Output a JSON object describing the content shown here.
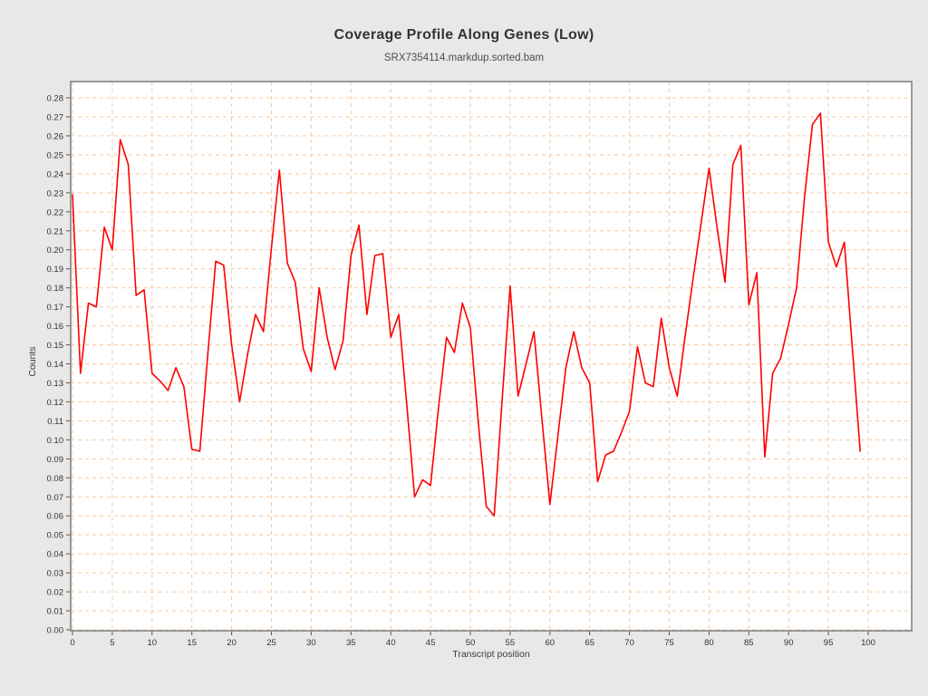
{
  "chart_data": {
    "type": "line",
    "title": "Coverage Profile Along Genes (Low)",
    "subtitle": "SRX7354114.markdup.sorted.bam",
    "xlabel": "Transcript position",
    "ylabel": "Counts",
    "xlim": [
      0,
      100
    ],
    "ylim": [
      0,
      0.28
    ],
    "grid": true,
    "legend_position": "none",
    "x_ticks": [
      0,
      5,
      10,
      15,
      20,
      25,
      30,
      35,
      40,
      45,
      50,
      55,
      60,
      65,
      70,
      75,
      80,
      85,
      90,
      95,
      100
    ],
    "y_ticks": [
      "0.00",
      "0.01",
      "0.02",
      "0.03",
      "0.04",
      "0.05",
      "0.06",
      "0.07",
      "0.08",
      "0.09",
      "0.10",
      "0.11",
      "0.12",
      "0.13",
      "0.14",
      "0.15",
      "0.16",
      "0.17",
      "0.18",
      "0.19",
      "0.20",
      "0.21",
      "0.22",
      "0.23",
      "0.24",
      "0.25",
      "0.26",
      "0.27",
      "0.28"
    ],
    "series": [
      {
        "name": "coverage",
        "x_start": 0,
        "x_step": 1,
        "values": [
          0.229,
          0.135,
          0.172,
          0.17,
          0.212,
          0.2,
          0.258,
          0.245,
          0.176,
          0.179,
          0.135,
          0.131,
          0.126,
          0.138,
          0.128,
          0.095,
          0.094,
          0.145,
          0.194,
          0.192,
          0.15,
          0.12,
          0.145,
          0.166,
          0.157,
          0.201,
          0.242,
          0.193,
          0.183,
          0.148,
          0.136,
          0.18,
          0.154,
          0.137,
          0.152,
          0.197,
          0.213,
          0.166,
          0.197,
          0.198,
          0.154,
          0.166,
          0.119,
          0.07,
          0.079,
          0.076,
          0.117,
          0.154,
          0.146,
          0.172,
          0.159,
          0.109,
          0.065,
          0.06,
          0.121,
          0.181,
          0.123,
          0.14,
          0.157,
          0.111,
          0.066,
          0.102,
          0.138,
          0.157,
          0.138,
          0.13,
          0.078,
          0.092,
          0.094,
          0.104,
          0.115,
          0.149,
          0.13,
          0.128,
          0.164,
          0.138,
          0.123,
          0.155,
          0.185,
          0.214,
          0.243,
          0.212,
          0.183,
          0.245,
          0.255,
          0.171,
          0.188,
          0.091,
          0.135,
          0.143,
          0.161,
          0.18,
          0.228,
          0.266,
          0.272,
          0.204,
          0.191,
          0.204,
          0.149,
          0.094
        ]
      }
    ],
    "colors": {
      "line": "#ff0000",
      "grid": "#f6c8a0",
      "plot_background": "#ffffff",
      "page_background": "#e8e8e8",
      "frame": "#7a7a7a",
      "tick": "#555555"
    }
  }
}
